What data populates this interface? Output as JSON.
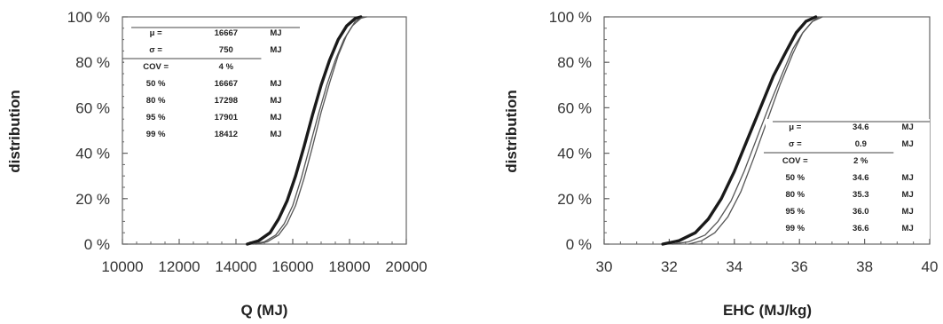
{
  "chart_data": [
    {
      "type": "line",
      "title": "",
      "xlabel": "Q (MJ)",
      "ylabel": "distribution",
      "xlim": [
        10000,
        20000
      ],
      "ylim": [
        0,
        100
      ],
      "x_ticks": [
        "10000",
        "12000",
        "14000",
        "16000",
        "18000",
        "20000"
      ],
      "y_ticks": [
        "0 %",
        "20 %",
        "40 %",
        "60 %",
        "80 %",
        "100 %"
      ],
      "grid": false,
      "series": [
        {
          "style": "thick",
          "x": [
            14400,
            14800,
            15200,
            15500,
            15800,
            16100,
            16400,
            16700,
            17000,
            17300,
            17600,
            17900,
            18200,
            18400
          ],
          "y": [
            0,
            1.5,
            5,
            11,
            19,
            30,
            43,
            57,
            70,
            81,
            90,
            96,
            99.3,
            100
          ]
        },
        {
          "style": "thin",
          "x": [
            14600,
            15000,
            15400,
            15700,
            16000,
            16300,
            16600,
            16900,
            17200,
            17500,
            17800,
            18100,
            18400,
            18600
          ],
          "y": [
            0,
            1,
            4,
            9,
            17,
            29,
            43,
            57,
            70,
            81,
            90,
            96,
            99.4,
            100
          ]
        },
        {
          "style": "thin",
          "x": [
            14700,
            15100,
            15500,
            15800,
            16100,
            16400,
            16700,
            17000,
            17300,
            17600,
            17900,
            18200,
            18500
          ],
          "y": [
            0,
            1,
            4,
            9,
            17,
            29,
            43,
            58,
            71,
            83,
            92,
            98,
            100
          ]
        }
      ],
      "stats_table": {
        "rows": [
          {
            "label": "μ =",
            "value": "16667",
            "unit": "MJ"
          },
          {
            "label": "σ =",
            "value": "750",
            "unit": "MJ"
          },
          {
            "label": "COV =",
            "value": "4 %",
            "unit": ""
          },
          {
            "label": "50 %",
            "value": "16667",
            "unit": "MJ"
          },
          {
            "label": "80 %",
            "value": "17298",
            "unit": "MJ"
          },
          {
            "label": "95 %",
            "value": "17901",
            "unit": "MJ"
          },
          {
            "label": "99 %",
            "value": "18412",
            "unit": "MJ"
          }
        ]
      }
    },
    {
      "type": "line",
      "title": "",
      "xlabel": "EHC (MJ/kg)",
      "ylabel": "distribution",
      "xlim": [
        30,
        40
      ],
      "ylim": [
        0,
        100
      ],
      "x_ticks": [
        "30",
        "32",
        "34",
        "36",
        "38",
        "40"
      ],
      "y_ticks": [
        "0 %",
        "20 %",
        "40 %",
        "60 %",
        "80 %",
        "100 %"
      ],
      "grid": false,
      "series": [
        {
          "style": "thick",
          "x": [
            31.8,
            32.3,
            32.8,
            33.2,
            33.6,
            34.0,
            34.4,
            34.8,
            35.2,
            35.6,
            35.9,
            36.2,
            36.5
          ],
          "y": [
            0,
            1.5,
            5,
            11,
            20,
            32,
            46,
            60,
            74,
            85,
            93,
            98,
            100
          ]
        },
        {
          "style": "thin",
          "x": [
            32.1,
            32.6,
            33.1,
            33.5,
            33.9,
            34.3,
            34.7,
            35.1,
            35.5,
            35.8,
            36.1,
            36.4,
            36.6
          ],
          "y": [
            0,
            1,
            4,
            10,
            19,
            32,
            47,
            62,
            76,
            86,
            93,
            98,
            100
          ]
        },
        {
          "style": "thin",
          "x": [
            32.6,
            33.0,
            33.4,
            33.8,
            34.2,
            34.6,
            35.0,
            35.4,
            35.8,
            36.1,
            36.4,
            36.7
          ],
          "y": [
            0,
            1.5,
            5,
            12,
            23,
            38,
            54,
            70,
            84,
            93,
            98,
            100
          ]
        }
      ],
      "stats_table": {
        "rows": [
          {
            "label": "μ =",
            "value": "34.6",
            "unit": "MJ"
          },
          {
            "label": "σ =",
            "value": "0.9",
            "unit": "MJ"
          },
          {
            "label": "COV =",
            "value": "2 %",
            "unit": ""
          },
          {
            "label": "50 %",
            "value": "34.6",
            "unit": "MJ"
          },
          {
            "label": "80 %",
            "value": "35.3",
            "unit": "MJ"
          },
          {
            "label": "95 %",
            "value": "36.0",
            "unit": "MJ"
          },
          {
            "label": "99 %",
            "value": "36.6",
            "unit": "MJ"
          }
        ]
      }
    }
  ]
}
